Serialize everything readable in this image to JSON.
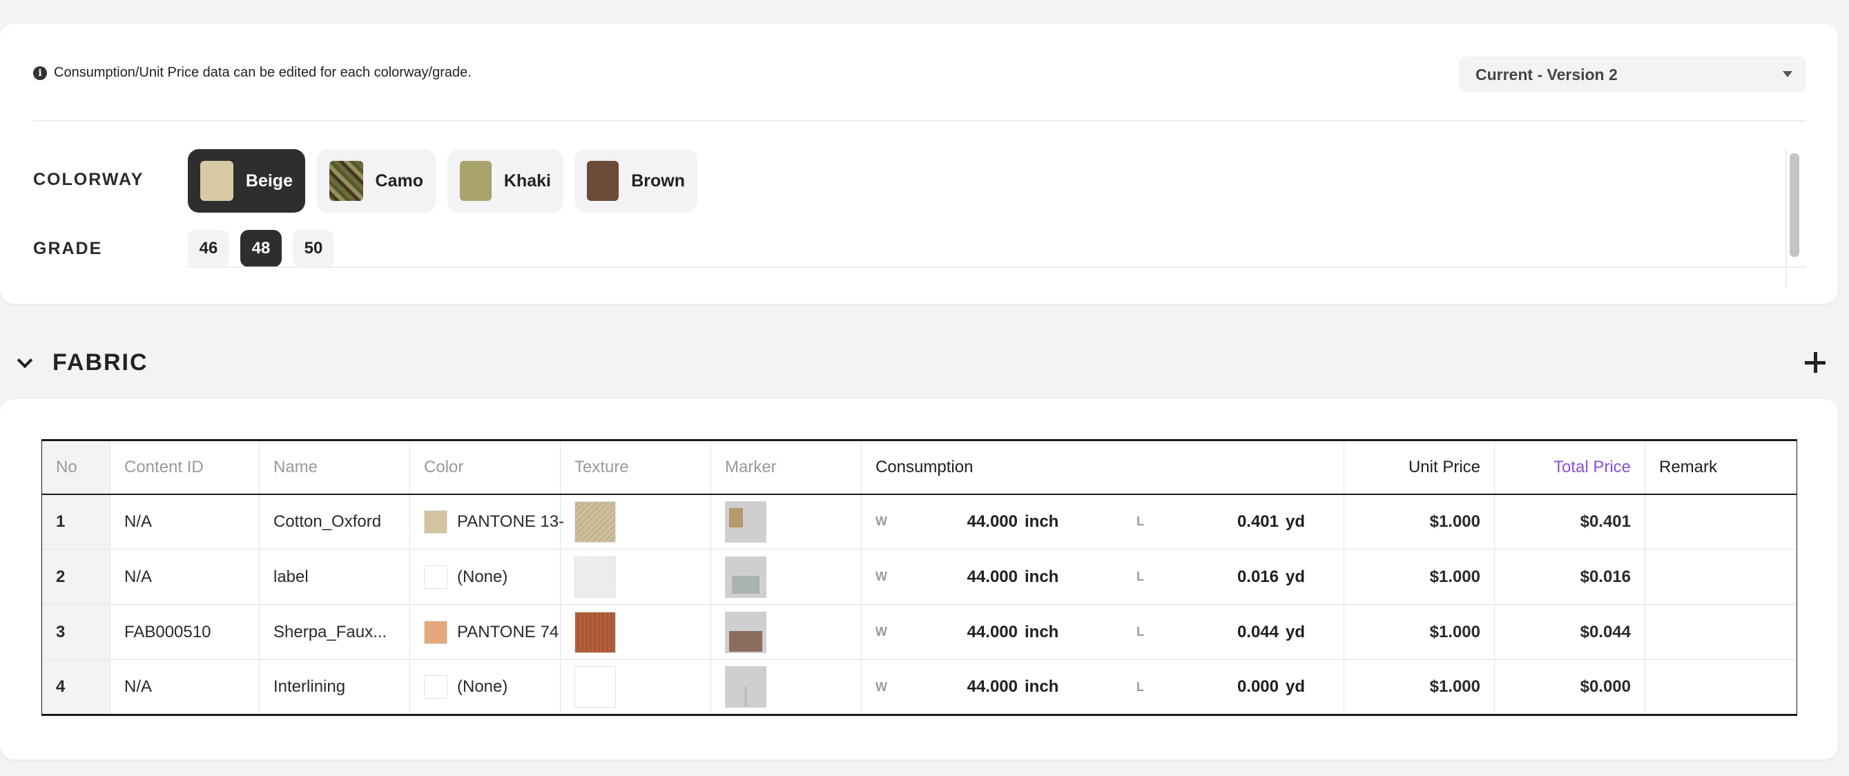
{
  "notice": {
    "icon": "info-icon",
    "text": "Consumption/Unit Price data can be edited for each colorway/grade."
  },
  "version_select": {
    "value": "Current - Version 2"
  },
  "colorway": {
    "label": "COLORWAY",
    "selected": "Beige",
    "items": [
      {
        "label": "Beige",
        "color": "#d7c9a3"
      },
      {
        "label": "Camo",
        "color": "#6e6a3c"
      },
      {
        "label": "Khaki",
        "color": "#a8a36d"
      },
      {
        "label": "Brown",
        "color": "#6b4a36"
      }
    ]
  },
  "grade": {
    "label": "GRADE",
    "selected": "48",
    "items": [
      "46",
      "48",
      "50"
    ]
  },
  "section": {
    "title": "FABRIC"
  },
  "table": {
    "headers": {
      "no": "No",
      "content_id": "Content ID",
      "name": "Name",
      "color": "Color",
      "texture": "Texture",
      "marker": "Marker",
      "consumption": "Consumption",
      "unit_price": "Unit Price",
      "total_price": "Total Price",
      "remark": "Remark"
    },
    "rows": [
      {
        "no": "1",
        "content_id": "N/A",
        "name": "Cotton_Oxford",
        "color": "PANTONE 13-",
        "color_swatch": "#d3c4a0",
        "w_label": "W",
        "w_value": "44.000",
        "w_unit": "inch",
        "l_label": "L",
        "l_value": "0.401",
        "l_unit": "yd",
        "unit_price": "$1.000",
        "total_price": "$0.401",
        "remark": ""
      },
      {
        "no": "2",
        "content_id": "N/A",
        "name": "label",
        "color": "(None)",
        "color_swatch": "#ffffff",
        "w_label": "W",
        "w_value": "44.000",
        "w_unit": "inch",
        "l_label": "L",
        "l_value": "0.016",
        "l_unit": "yd",
        "unit_price": "$1.000",
        "total_price": "$0.016",
        "remark": ""
      },
      {
        "no": "3",
        "content_id": "FAB000510",
        "name": "Sherpa_Faux...",
        "color": "PANTONE 74",
        "color_swatch": "#e4a87a",
        "w_label": "W",
        "w_value": "44.000",
        "w_unit": "inch",
        "l_label": "L",
        "l_value": "0.044",
        "l_unit": "yd",
        "unit_price": "$1.000",
        "total_price": "$0.044",
        "remark": ""
      },
      {
        "no": "4",
        "content_id": "N/A",
        "name": "Interlining",
        "color": "(None)",
        "color_swatch": "#ffffff",
        "w_label": "W",
        "w_value": "44.000",
        "w_unit": "inch",
        "l_label": "L",
        "l_value": "0.000",
        "l_unit": "yd",
        "unit_price": "$1.000",
        "total_price": "$0.000",
        "remark": ""
      }
    ]
  },
  "accent_colors": {
    "selected_chip": "#2e2e2e",
    "total_price": "#8a4fd9"
  }
}
